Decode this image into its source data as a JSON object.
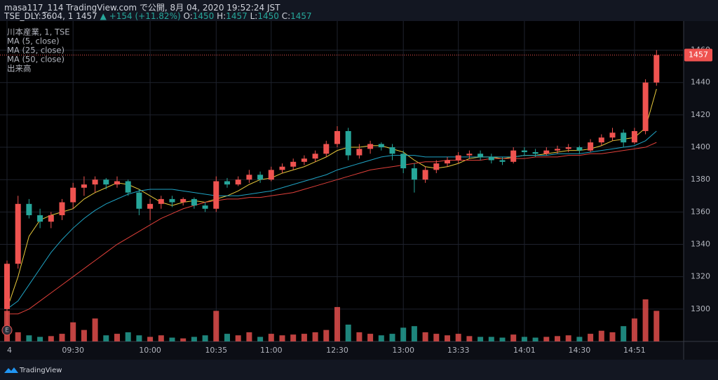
{
  "header": {
    "publisher": "masa117_114 TradingView.com で公開, 8月 04, 2020 19:52:24 JST",
    "symbol": "TSE_DLY:3604, 1",
    "last": "1457",
    "change": "▲ +154 (+11.82%)",
    "ohlc": [
      {
        "label": "O:",
        "value": "1450"
      },
      {
        "label": "H:",
        "value": "1457"
      },
      {
        "label": "L:",
        "value": "1450"
      },
      {
        "label": "C:",
        "value": "1457"
      }
    ]
  },
  "footer": "TradingView",
  "chart_data": {
    "type": "candlestick",
    "title": "川本産業, 1, TSE",
    "volume_name": "出来高",
    "categories": [
      "4",
      null,
      null,
      null,
      null,
      null,
      "09:30",
      null,
      null,
      null,
      null,
      null,
      null,
      "10:00",
      null,
      null,
      null,
      null,
      null,
      "10:35",
      null,
      null,
      null,
      null,
      "11:00",
      null,
      null,
      null,
      null,
      null,
      "12:30",
      null,
      null,
      null,
      null,
      null,
      "13:00",
      null,
      null,
      null,
      null,
      "13:33",
      null,
      null,
      null,
      null,
      null,
      "14:01",
      null,
      null,
      null,
      null,
      "14:30",
      null,
      null,
      null,
      null,
      "14:51",
      null,
      null
    ],
    "open": [
      1300,
      1328,
      1365,
      1358,
      1354,
      1358,
      1366,
      1375,
      1377,
      1380,
      1377,
      1379,
      1372,
      1362,
      1365,
      1368,
      1366,
      1368,
      1364,
      1362,
      1379,
      1377,
      1380,
      1383,
      1380,
      1386,
      1388,
      1391,
      1393,
      1396,
      1402,
      1410,
      1395,
      1399,
      1402,
      1400,
      1396,
      1387,
      1380,
      1386,
      1390,
      1392,
      1395,
      1396,
      1394,
      1392,
      1391,
      1398,
      1397,
      1396,
      1398,
      1399,
      1400,
      1398,
      1403,
      1406,
      1409,
      1403,
      1410,
      1440
    ],
    "high": [
      1330,
      1370,
      1368,
      1362,
      1360,
      1368,
      1378,
      1382,
      1382,
      1381,
      1382,
      1380,
      1374,
      1368,
      1370,
      1370,
      1369,
      1369,
      1366,
      1382,
      1381,
      1382,
      1386,
      1385,
      1388,
      1390,
      1393,
      1395,
      1398,
      1404,
      1413,
      1412,
      1402,
      1404,
      1403,
      1402,
      1398,
      1390,
      1388,
      1392,
      1394,
      1397,
      1398,
      1398,
      1396,
      1394,
      1400,
      1400,
      1399,
      1400,
      1401,
      1402,
      1401,
      1405,
      1408,
      1412,
      1411,
      1412,
      1442,
      1460
    ],
    "low": [
      1290,
      1325,
      1356,
      1350,
      1350,
      1355,
      1362,
      1370,
      1372,
      1374,
      1375,
      1370,
      1358,
      1355,
      1362,
      1363,
      1364,
      1362,
      1360,
      1360,
      1375,
      1376,
      1378,
      1378,
      1379,
      1384,
      1386,
      1389,
      1391,
      1394,
      1400,
      1392,
      1393,
      1396,
      1398,
      1392,
      1384,
      1372,
      1378,
      1384,
      1388,
      1390,
      1393,
      1392,
      1390,
      1389,
      1390,
      1395,
      1394,
      1395,
      1396,
      1397,
      1396,
      1397,
      1401,
      1404,
      1400,
      1402,
      1408,
      1438
    ],
    "close": [
      1328,
      1365,
      1358,
      1354,
      1358,
      1366,
      1375,
      1377,
      1380,
      1377,
      1379,
      1372,
      1362,
      1365,
      1368,
      1366,
      1368,
      1364,
      1362,
      1379,
      1377,
      1380,
      1383,
      1380,
      1386,
      1388,
      1391,
      1393,
      1396,
      1402,
      1410,
      1395,
      1399,
      1402,
      1400,
      1396,
      1387,
      1380,
      1386,
      1390,
      1392,
      1395,
      1396,
      1394,
      1392,
      1391,
      1398,
      1397,
      1396,
      1398,
      1399,
      1400,
      1398,
      1403,
      1406,
      1409,
      1403,
      1410,
      1440,
      1457
    ],
    "volume": [
      40,
      12,
      8,
      6,
      7,
      10,
      25,
      15,
      30,
      8,
      10,
      12,
      8,
      6,
      8,
      5,
      4,
      6,
      8,
      40,
      10,
      8,
      12,
      6,
      10,
      8,
      9,
      10,
      12,
      15,
      45,
      22,
      12,
      10,
      8,
      10,
      18,
      20,
      12,
      10,
      8,
      10,
      7,
      6,
      6,
      5,
      9,
      6,
      5,
      6,
      7,
      8,
      6,
      10,
      14,
      12,
      20,
      30,
      55,
      40
    ],
    "series": [
      {
        "name": "MA (5, close)",
        "color": "#e8c93b",
        "values": [
          1300,
          1320,
          1345,
          1355,
          1358,
          1360,
          1362,
          1368,
          1372,
          1375,
          1378,
          1377,
          1374,
          1370,
          1366,
          1364,
          1366,
          1367,
          1366,
          1368,
          1370,
          1373,
          1377,
          1380,
          1381,
          1384,
          1386,
          1388,
          1391,
          1394,
          1398,
          1400,
          1400,
          1401,
          1401,
          1399,
          1397,
          1392,
          1388,
          1387,
          1388,
          1390,
          1393,
          1394,
          1394,
          1393,
          1394,
          1395,
          1395,
          1396,
          1397,
          1398,
          1398,
          1399,
          1401,
          1404,
          1405,
          1406,
          1412,
          1436
        ]
      },
      {
        "name": "MA (25, close)",
        "color": "#1fa3c4",
        "values": [
          1300,
          1305,
          1315,
          1325,
          1335,
          1343,
          1350,
          1356,
          1361,
          1365,
          1368,
          1371,
          1373,
          1374,
          1374,
          1374,
          1373,
          1372,
          1371,
          1370,
          1370,
          1370,
          1371,
          1372,
          1373,
          1375,
          1377,
          1379,
          1381,
          1383,
          1386,
          1388,
          1390,
          1392,
          1394,
          1395,
          1395,
          1395,
          1394,
          1394,
          1394,
          1394,
          1394,
          1394,
          1394,
          1394,
          1394,
          1395,
          1395,
          1395,
          1396,
          1396,
          1396,
          1397,
          1398,
          1399,
          1400,
          1401,
          1404,
          1410
        ]
      },
      {
        "name": "MA (50, close)",
        "color": "#e0403a",
        "values": [
          1297,
          1297,
          1300,
          1305,
          1310,
          1315,
          1320,
          1325,
          1330,
          1335,
          1340,
          1344,
          1348,
          1352,
          1356,
          1359,
          1362,
          1364,
          1366,
          1367,
          1368,
          1368,
          1369,
          1369,
          1370,
          1371,
          1372,
          1374,
          1376,
          1378,
          1380,
          1382,
          1384,
          1386,
          1387,
          1388,
          1389,
          1390,
          1391,
          1391,
          1392,
          1392,
          1392,
          1392,
          1393,
          1393,
          1393,
          1393,
          1394,
          1394,
          1394,
          1395,
          1395,
          1396,
          1396,
          1397,
          1398,
          1399,
          1400,
          1403
        ]
      }
    ],
    "up_color": "#ef5350",
    "down_color": "#26a69a",
    "last_price": 1457,
    "ylim": [
      1280,
      1478
    ],
    "yticks": [
      1300,
      1320,
      1340,
      1360,
      1380,
      1400,
      1420,
      1440,
      1460
    ],
    "grid": true
  }
}
